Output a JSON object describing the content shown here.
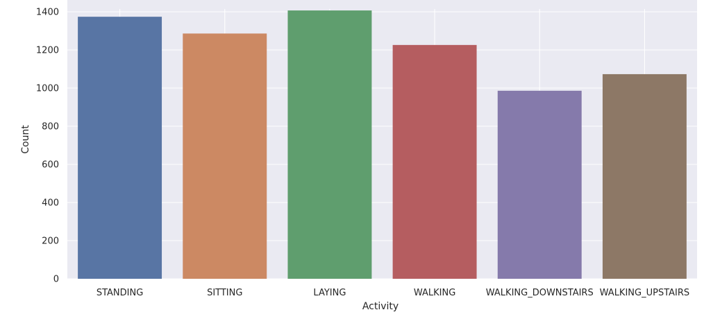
{
  "chart_data": {
    "type": "bar",
    "title": "",
    "xlabel": "Activity",
    "ylabel": "Count",
    "categories": [
      "STANDING",
      "SITTING",
      "LAYING",
      "WALKING",
      "WALKING_DOWNSTAIRS",
      "WALKING_UPSTAIRS"
    ],
    "values": [
      1374,
      1286,
      1407,
      1226,
      986,
      1073
    ],
    "colors": [
      "#5875a4",
      "#cc8963",
      "#5f9e6e",
      "#b55d60",
      "#857aab",
      "#8d7866"
    ],
    "yticks": [
      0,
      200,
      400,
      600,
      800,
      1000,
      1200,
      1400
    ],
    "ylim": [
      0,
      1415
    ],
    "grid": true,
    "background": "#eaeaf2"
  }
}
